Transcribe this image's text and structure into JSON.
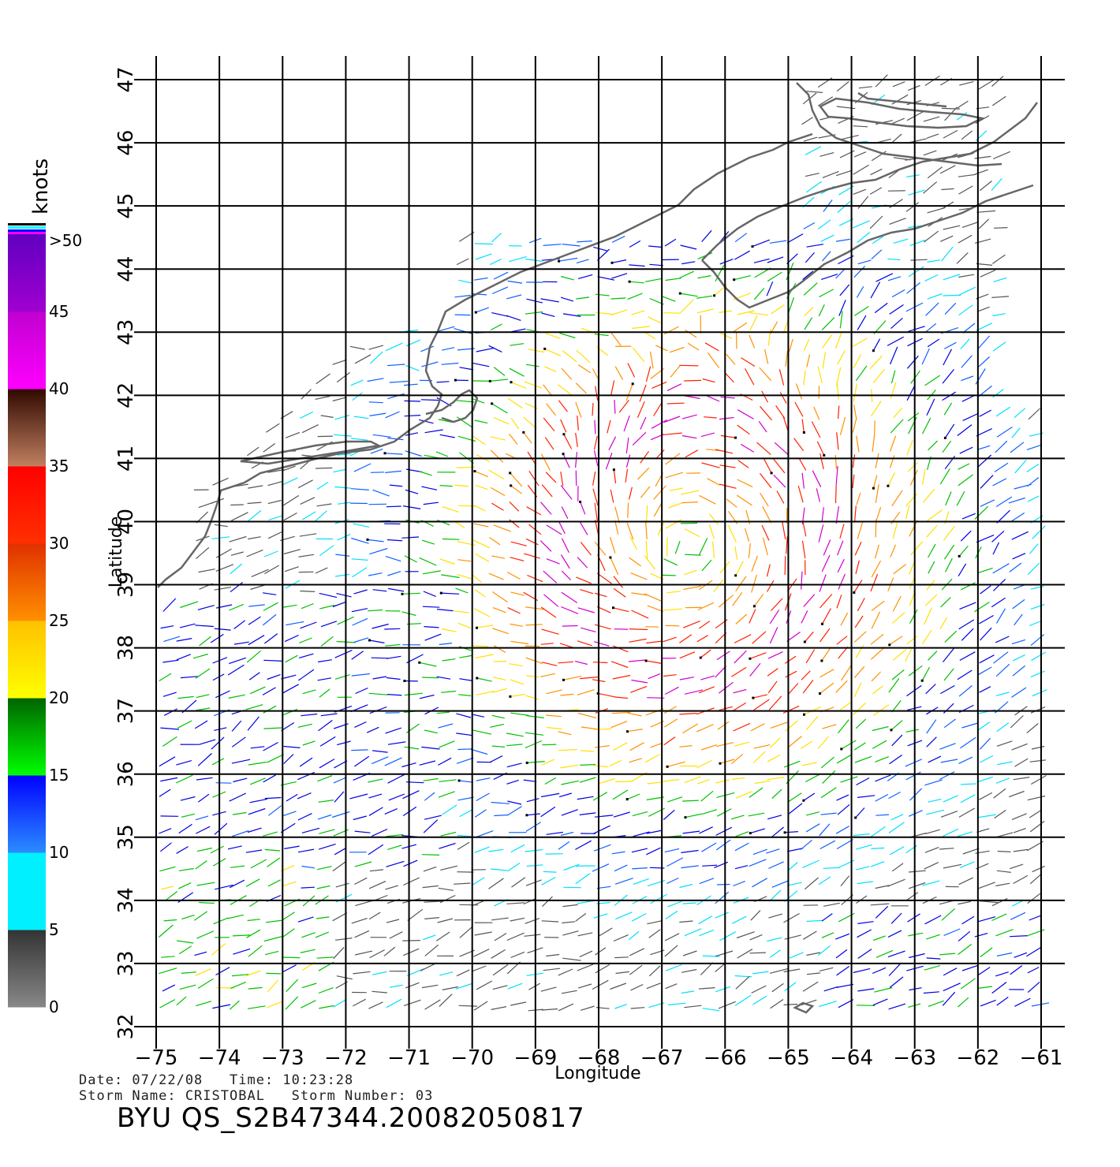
{
  "map": {
    "x_label": "Longitude",
    "y_label": "Latitude",
    "lon_ticks": [
      "−75",
      "−74",
      "−73",
      "−72",
      "−71",
      "−70",
      "−69",
      "−68",
      "−67",
      "−66",
      "−65",
      "−64",
      "−63",
      "−62",
      "−61"
    ],
    "lat_ticks": [
      "32",
      "33",
      "34",
      "35",
      "36",
      "37",
      "38",
      "39",
      "40",
      "41",
      "42",
      "43",
      "44",
      "45",
      "46",
      "47"
    ],
    "lon_range": [
      -75,
      -61
    ],
    "lat_range": [
      32,
      47
    ],
    "grid": true,
    "coastline_color": "#666666",
    "gridline_color": "#000000"
  },
  "legend": {
    "unit": "knots",
    "over_label": ">50",
    "segments": [
      {
        "from": 0,
        "to": 5,
        "top": "#333333",
        "bottom": "#888888"
      },
      {
        "from": 5,
        "to": 10,
        "top": "#00f0ff",
        "bottom": "#00f0ff"
      },
      {
        "from": 10,
        "to": 15,
        "top": "#0000ff",
        "bottom": "#2b8cff"
      },
      {
        "from": 15,
        "to": 20,
        "top": "#006400",
        "bottom": "#00ff00"
      },
      {
        "from": 20,
        "to": 25,
        "top": "#ffc000",
        "bottom": "#ffff00"
      },
      {
        "from": 25,
        "to": 30,
        "top": "#e03000",
        "bottom": "#ff9000"
      },
      {
        "from": 30,
        "to": 35,
        "top": "#ff0000",
        "bottom": "#ff3000"
      },
      {
        "from": 35,
        "to": 40,
        "top": "#300800",
        "bottom": "#c08060"
      },
      {
        "from": 40,
        "to": 45,
        "top": "#c000d0",
        "bottom": "#ff00ff"
      },
      {
        "from": 45,
        "to": 50,
        "top": "#6000c0",
        "bottom": "#a000d0"
      }
    ],
    "labels": [
      "0",
      "5",
      "10",
      "15",
      "20",
      "25",
      "30",
      "35",
      "40",
      "45"
    ]
  },
  "info": {
    "date_line": "Date: 07/22/08   Time: 10:23:28",
    "storm_line": "Storm Name: CRISTOBAL   Storm Number: 03",
    "product_id": "BYU QS_S2B47344.20082050817"
  },
  "wind_field": {
    "storm_center": {
      "lon": -66.6,
      "lat": 39.6
    },
    "speed_colors": [
      "#555555",
      "#00e0ff",
      "#1060ff",
      "#0000e0",
      "#00c000",
      "#ffe000",
      "#ff9000",
      "#ff2000",
      "#d000d0"
    ]
  }
}
